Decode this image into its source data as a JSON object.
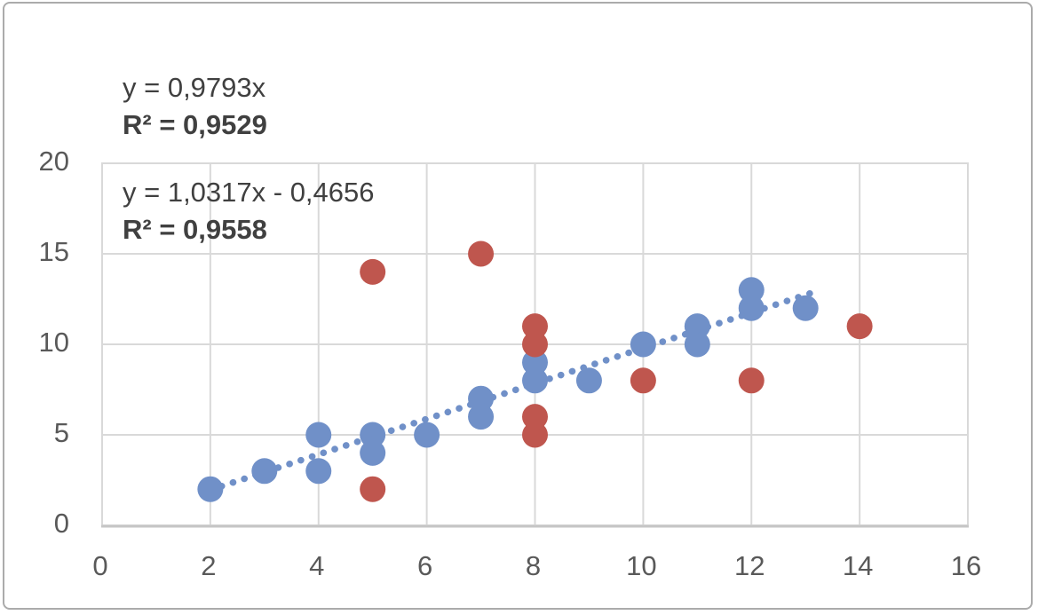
{
  "chart_data": {
    "type": "scatter",
    "title": "",
    "xlabel": "",
    "ylabel": "",
    "xlim": [
      0,
      16
    ],
    "ylim": [
      0,
      20
    ],
    "x_ticks": [
      0,
      2,
      4,
      6,
      8,
      10,
      12,
      14,
      16
    ],
    "y_ticks": [
      0,
      5,
      10,
      15,
      20
    ],
    "grid": true,
    "legend": "none",
    "series": [
      {
        "name": "blue-series",
        "color": "#7090C8",
        "marker": "circle",
        "points": [
          [
            2,
            2
          ],
          [
            3,
            3
          ],
          [
            4,
            3
          ],
          [
            4,
            5
          ],
          [
            5,
            4
          ],
          [
            5,
            5
          ],
          [
            6,
            5
          ],
          [
            7,
            6
          ],
          [
            7,
            7
          ],
          [
            8,
            8
          ],
          [
            8,
            9
          ],
          [
            9,
            8
          ],
          [
            10,
            10
          ],
          [
            11,
            10
          ],
          [
            11,
            11
          ],
          [
            12,
            12
          ],
          [
            12,
            13
          ],
          [
            13,
            12
          ]
        ]
      },
      {
        "name": "red-series",
        "color": "#BF564E",
        "marker": "circle",
        "points": [
          [
            5,
            2
          ],
          [
            5,
            14
          ],
          [
            7,
            15
          ],
          [
            8,
            5
          ],
          [
            8,
            6
          ],
          [
            8,
            10
          ],
          [
            8,
            11
          ],
          [
            10,
            8
          ],
          [
            12,
            8
          ],
          [
            14,
            11
          ]
        ]
      }
    ],
    "trendline": {
      "style": "dotted",
      "color": "#7090C8",
      "slope": 0.9793,
      "intercept": 0,
      "x_start": 2,
      "x_end": 13.1
    },
    "annotations": [
      {
        "line1": "y = 0,9793x",
        "line2": "R² = 0,9529"
      },
      {
        "line1": "y = 1,0317x - 0,4656",
        "line2": "R² = 0,9558"
      }
    ]
  },
  "colors": {
    "background": "#FFFFFF",
    "frame_border": "#ABABAB",
    "gridline": "#D9D9D9",
    "axis_line": "#C6C6C6",
    "axis_text": "#595959",
    "annotation_text": "#404040"
  }
}
